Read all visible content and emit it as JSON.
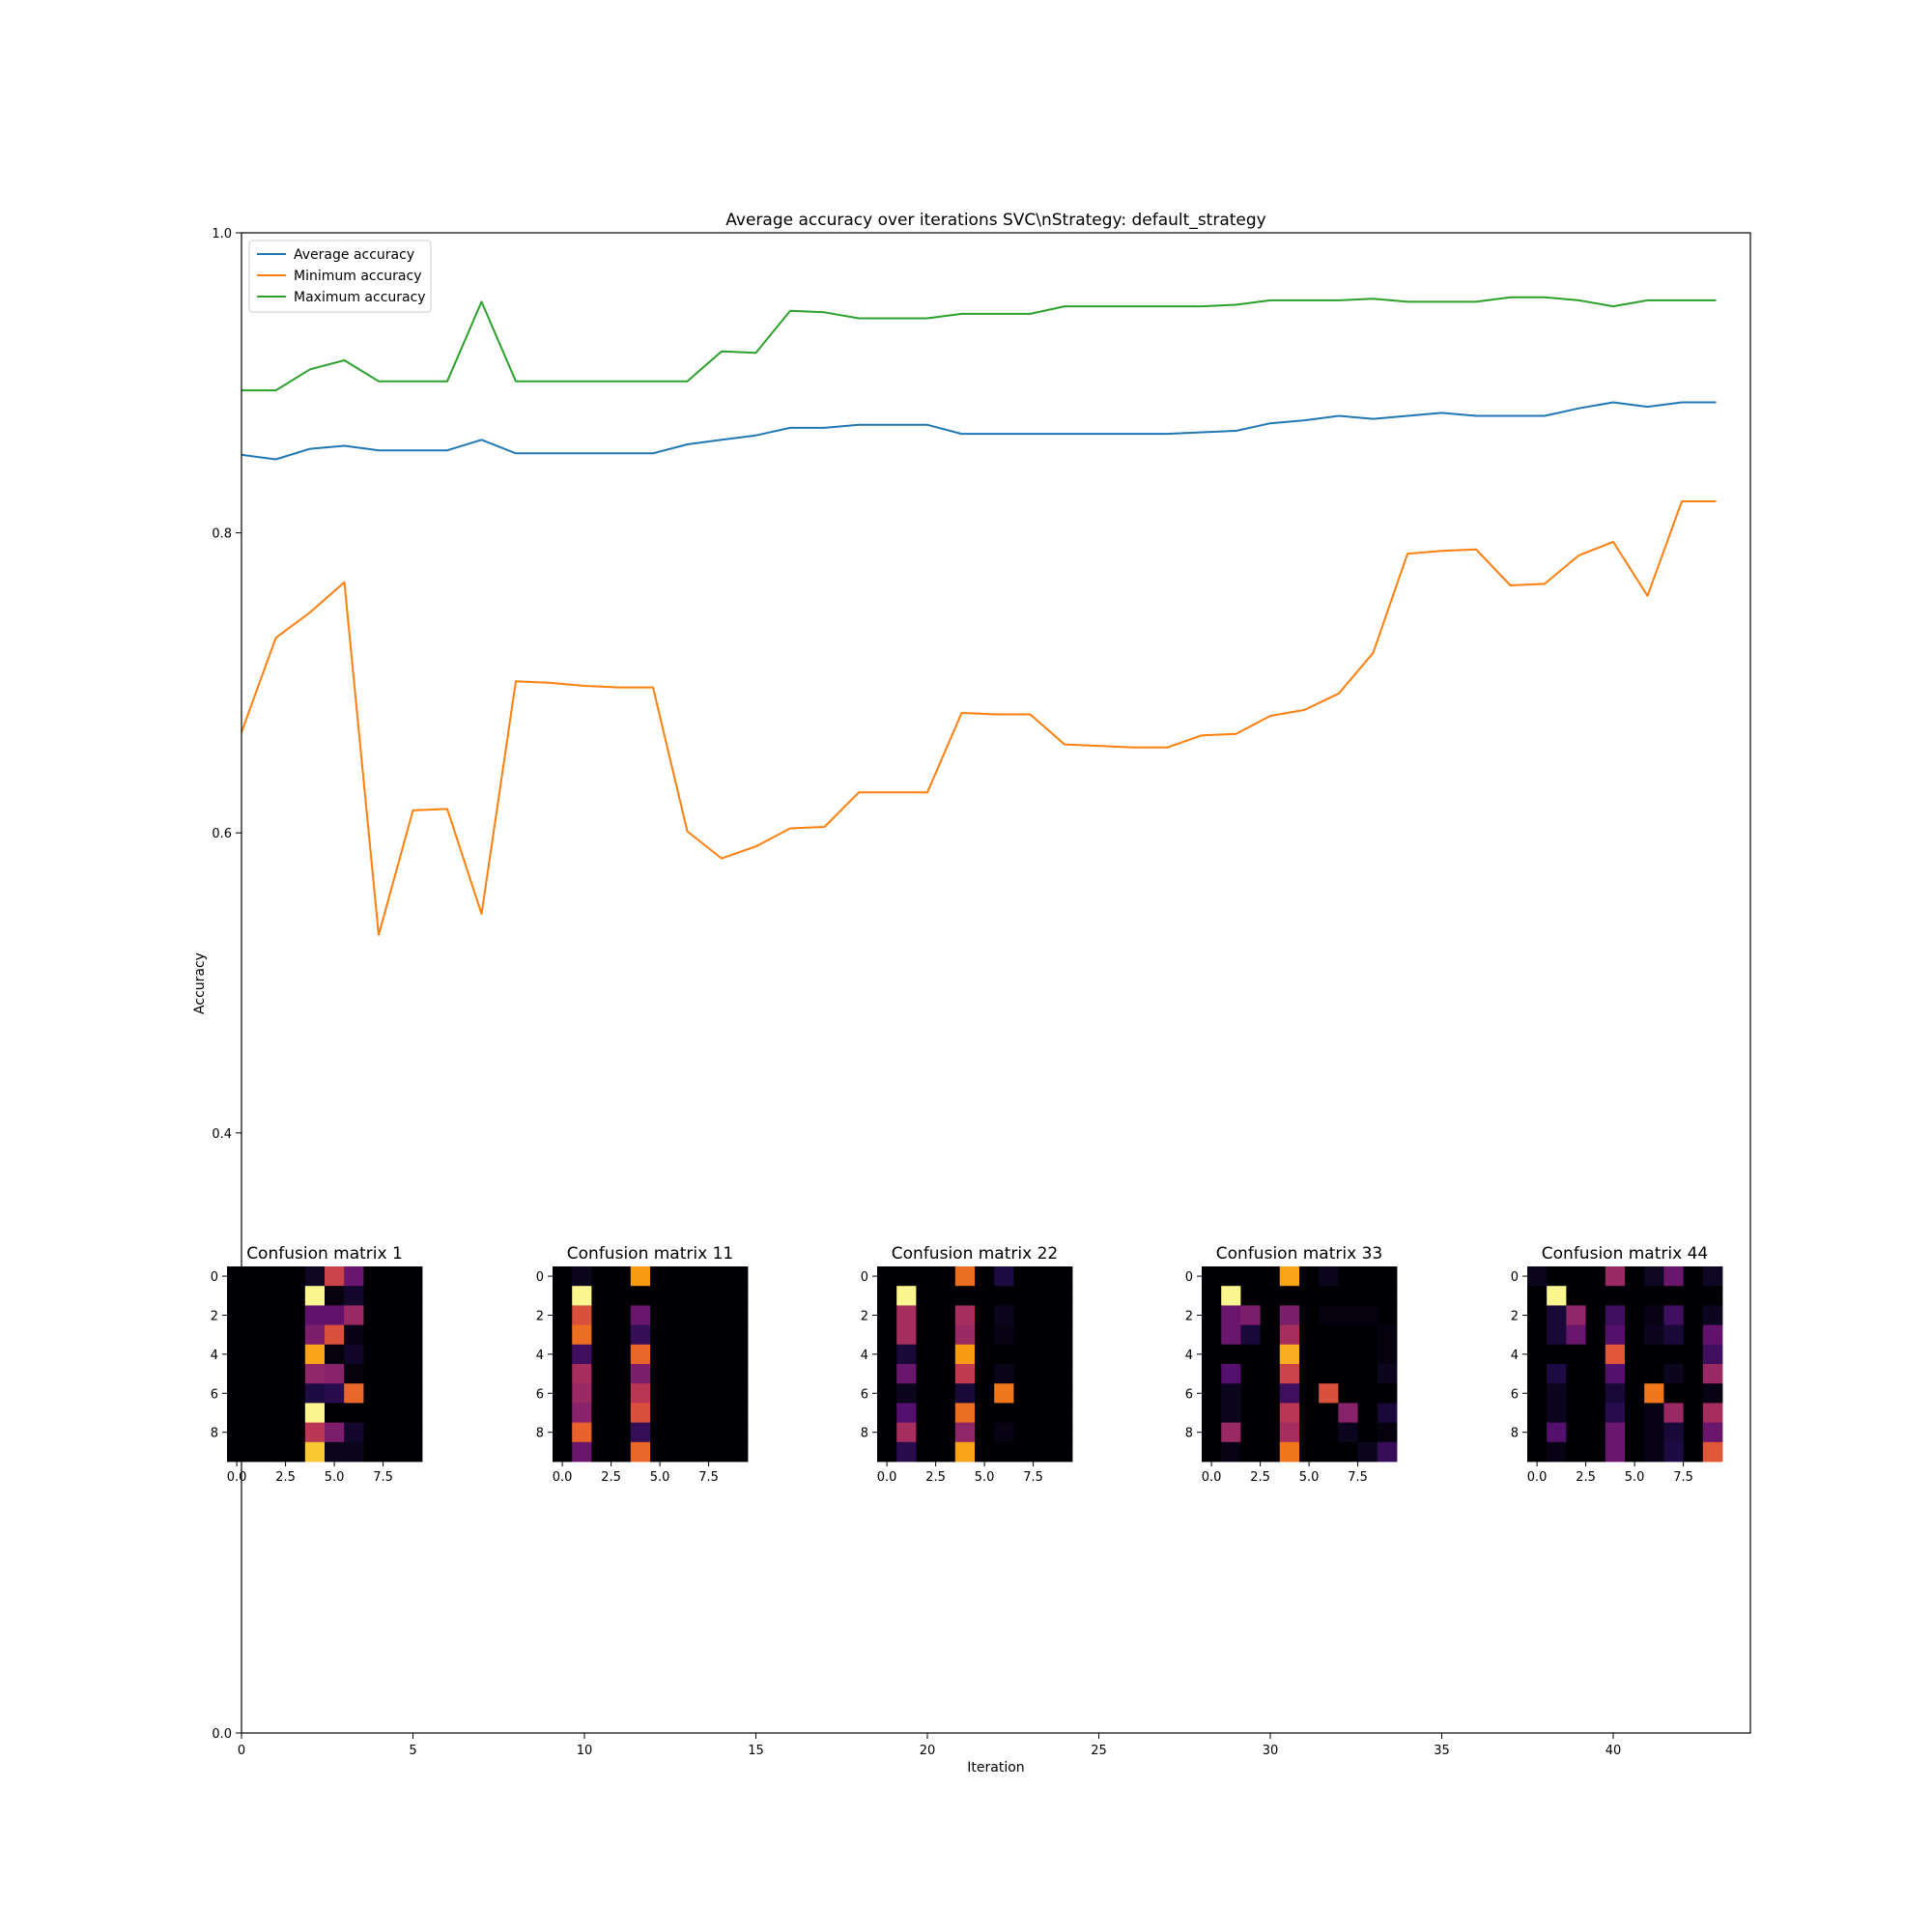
{
  "chart_data": [
    {
      "type": "line",
      "title": "Average accuracy over iterations SVC\\nStrategy: default_strategy",
      "xlabel": "Iteration",
      "ylabel": "Accuracy",
      "xlim": [
        0,
        44
      ],
      "ylim": [
        0.0,
        1.0
      ],
      "xticks": [
        0,
        5,
        10,
        15,
        20,
        25,
        30,
        35,
        40
      ],
      "xtick_labels": [
        "0",
        "5",
        "10",
        "15",
        "20",
        "25",
        "30",
        "35",
        "40"
      ],
      "yticks": [
        0.0,
        0.4,
        0.6,
        0.8,
        1.0
      ],
      "ytick_labels": [
        "0.0",
        "0.4",
        "0.6",
        "0.8",
        "1.0"
      ],
      "grid": false,
      "legend_position": "top-left",
      "x": [
        0,
        1,
        2,
        3,
        4,
        5,
        6,
        7,
        8,
        9,
        10,
        11,
        12,
        13,
        14,
        15,
        16,
        17,
        18,
        19,
        20,
        21,
        22,
        23,
        24,
        25,
        26,
        27,
        28,
        29,
        30,
        31,
        32,
        33,
        34,
        35,
        36,
        37,
        38,
        39,
        40,
        41,
        42,
        43
      ],
      "series": [
        {
          "name": "Average accuracy",
          "color": "#1f77b4",
          "values": [
            0.852,
            0.849,
            0.856,
            0.858,
            0.855,
            0.855,
            0.855,
            0.862,
            0.853,
            0.853,
            0.853,
            0.853,
            0.853,
            0.859,
            0.862,
            0.865,
            0.87,
            0.87,
            0.872,
            0.872,
            0.872,
            0.866,
            0.866,
            0.866,
            0.866,
            0.866,
            0.866,
            0.866,
            0.867,
            0.868,
            0.873,
            0.875,
            0.878,
            0.876,
            0.878,
            0.88,
            0.878,
            0.878,
            0.878,
            0.883,
            0.887,
            0.884,
            0.887,
            0.887
          ]
        },
        {
          "name": "Minimum accuracy",
          "color": "#ff7f0e",
          "values": [
            0.667,
            0.73,
            0.747,
            0.767,
            0.532,
            0.615,
            0.616,
            0.546,
            0.701,
            0.7,
            0.698,
            0.697,
            0.697,
            0.601,
            0.583,
            0.591,
            0.603,
            0.604,
            0.627,
            0.627,
            0.627,
            0.68,
            0.679,
            0.679,
            0.659,
            0.658,
            0.657,
            0.657,
            0.665,
            0.666,
            0.678,
            0.682,
            0.693,
            0.72,
            0.786,
            0.788,
            0.789,
            0.765,
            0.766,
            0.785,
            0.794,
            0.758,
            0.821,
            0.821
          ]
        },
        {
          "name": "Maximum accuracy",
          "color": "#2ca02c",
          "values": [
            0.895,
            0.895,
            0.909,
            0.915,
            0.901,
            0.901,
            0.901,
            0.954,
            0.901,
            0.901,
            0.901,
            0.901,
            0.901,
            0.901,
            0.921,
            0.92,
            0.948,
            0.947,
            0.943,
            0.943,
            0.943,
            0.946,
            0.946,
            0.946,
            0.951,
            0.951,
            0.951,
            0.951,
            0.951,
            0.952,
            0.955,
            0.955,
            0.955,
            0.956,
            0.954,
            0.954,
            0.954,
            0.957,
            0.957,
            0.955,
            0.951,
            0.955,
            0.955,
            0.955
          ]
        }
      ]
    },
    {
      "type": "heatmap",
      "title": "Confusion matrix 1",
      "colormap": "inferno",
      "xticks": [
        0.0,
        2.5,
        5.0,
        7.5
      ],
      "xtick_labels": [
        "0.0",
        "2.5",
        "5.0",
        "7.5"
      ],
      "yticks": [
        0,
        2,
        4,
        6,
        8
      ],
      "ytick_labels": [
        "0",
        "2",
        "4",
        "6",
        "8"
      ],
      "values": [
        [
          0,
          0,
          0,
          0,
          0.06,
          0.55,
          0.3,
          0,
          0,
          0
        ],
        [
          0,
          0,
          0,
          0,
          0.98,
          0.02,
          0.08,
          0,
          0,
          0
        ],
        [
          0,
          0,
          0,
          0,
          0.28,
          0.28,
          0.42,
          0,
          0,
          0
        ],
        [
          0,
          0,
          0,
          0,
          0.35,
          0.6,
          0.03,
          0,
          0,
          0
        ],
        [
          0,
          0,
          0,
          0,
          0.8,
          0.02,
          0.07,
          0,
          0,
          0
        ],
        [
          0,
          0,
          0,
          0,
          0.4,
          0.38,
          0.02,
          0,
          0,
          0
        ],
        [
          0,
          0,
          0,
          0,
          0.12,
          0.15,
          0.66,
          0,
          0,
          0
        ],
        [
          0,
          0,
          0,
          0,
          0.98,
          0,
          0,
          0,
          0,
          0
        ],
        [
          0,
          0,
          0,
          0,
          0.5,
          0.35,
          0.08,
          0,
          0,
          0
        ],
        [
          0,
          0,
          0,
          0,
          0.88,
          0.05,
          0.05,
          0,
          0,
          0
        ]
      ]
    },
    {
      "type": "heatmap",
      "title": "Confusion matrix 11",
      "colormap": "inferno",
      "xticks": [
        0.0,
        2.5,
        5.0,
        7.5
      ],
      "xtick_labels": [
        "0.0",
        "2.5",
        "5.0",
        "7.5"
      ],
      "yticks": [
        0,
        2,
        4,
        6,
        8
      ],
      "ytick_labels": [
        "0",
        "2",
        "4",
        "6",
        "8"
      ],
      "values": [
        [
          0,
          0.05,
          0,
          0,
          0.78,
          0,
          0,
          0,
          0,
          0
        ],
        [
          0,
          0.98,
          0,
          0,
          0,
          0,
          0,
          0,
          0,
          0
        ],
        [
          0,
          0.6,
          0,
          0,
          0.3,
          0,
          0,
          0,
          0,
          0
        ],
        [
          0,
          0.68,
          0,
          0,
          0.18,
          0,
          0,
          0,
          0,
          0
        ],
        [
          0,
          0.2,
          0,
          0,
          0.66,
          0,
          0,
          0,
          0,
          0
        ],
        [
          0,
          0.45,
          0,
          0,
          0.35,
          0,
          0,
          0,
          0,
          0
        ],
        [
          0,
          0.42,
          0,
          0,
          0.5,
          0,
          0,
          0,
          0,
          0
        ],
        [
          0,
          0.38,
          0,
          0,
          0.6,
          0,
          0,
          0,
          0,
          0
        ],
        [
          0,
          0.65,
          0,
          0,
          0.18,
          0,
          0,
          0,
          0,
          0
        ],
        [
          0,
          0.3,
          0,
          0,
          0.66,
          0,
          0,
          0,
          0,
          0
        ]
      ]
    },
    {
      "type": "heatmap",
      "title": "Confusion matrix 22",
      "colormap": "inferno",
      "xticks": [
        0.0,
        2.5,
        5.0,
        7.5
      ],
      "xtick_labels": [
        "0.0",
        "2.5",
        "5.0",
        "7.5"
      ],
      "yticks": [
        0,
        2,
        4,
        6,
        8
      ],
      "ytick_labels": [
        "0",
        "2",
        "4",
        "6",
        "8"
      ],
      "values": [
        [
          0,
          0,
          0,
          0,
          0.68,
          0,
          0.12,
          0,
          0,
          0
        ],
        [
          0,
          0.98,
          0,
          0,
          0,
          0,
          0,
          0,
          0,
          0
        ],
        [
          0,
          0.45,
          0,
          0,
          0.45,
          0,
          0.05,
          0,
          0,
          0
        ],
        [
          0,
          0.45,
          0,
          0,
          0.42,
          0,
          0.03,
          0,
          0,
          0
        ],
        [
          0,
          0.1,
          0,
          0,
          0.78,
          0,
          0,
          0,
          0,
          0
        ],
        [
          0,
          0.3,
          0,
          0,
          0.52,
          0,
          0.04,
          0,
          0,
          0
        ],
        [
          0,
          0.05,
          0,
          0,
          0.1,
          0,
          0.7,
          0,
          0,
          0
        ],
        [
          0,
          0.25,
          0,
          0,
          0.68,
          0,
          0,
          0,
          0,
          0
        ],
        [
          0,
          0.45,
          0,
          0,
          0.4,
          0,
          0.03,
          0,
          0,
          0
        ],
        [
          0,
          0.15,
          0,
          0,
          0.8,
          0,
          0,
          0,
          0,
          0
        ]
      ]
    },
    {
      "type": "heatmap",
      "title": "Confusion matrix 33",
      "colormap": "inferno",
      "xticks": [
        0.0,
        2.5,
        5.0,
        7.5
      ],
      "xtick_labels": [
        "0.0",
        "2.5",
        "5.0",
        "7.5"
      ],
      "yticks": [
        0,
        2,
        4,
        6,
        8
      ],
      "ytick_labels": [
        "0",
        "2",
        "4",
        "6",
        "8"
      ],
      "values": [
        [
          0,
          0,
          0,
          0,
          0.8,
          0,
          0.05,
          0,
          0,
          0
        ],
        [
          0,
          0.98,
          0,
          0,
          0,
          0,
          0,
          0,
          0,
          0
        ],
        [
          0,
          0.3,
          0.35,
          0,
          0.35,
          0,
          0.02,
          0.02,
          0.02,
          0
        ],
        [
          0,
          0.3,
          0.1,
          0,
          0.45,
          0,
          0,
          0,
          0,
          0.02
        ],
        [
          0,
          0,
          0,
          0,
          0.82,
          0,
          0,
          0,
          0,
          0.02
        ],
        [
          0,
          0.25,
          0,
          0,
          0.55,
          0,
          0,
          0,
          0,
          0.05
        ],
        [
          0,
          0.05,
          0,
          0,
          0.2,
          0,
          0.6,
          0,
          0,
          0
        ],
        [
          0,
          0.05,
          0,
          0,
          0.5,
          0,
          0,
          0.38,
          0,
          0.1
        ],
        [
          0,
          0.42,
          0,
          0,
          0.45,
          0,
          0,
          0.05,
          0,
          0.02
        ],
        [
          0,
          0.03,
          0,
          0,
          0.7,
          0,
          0,
          0,
          0.05,
          0.18
        ]
      ]
    },
    {
      "type": "heatmap",
      "title": "Confusion matrix 44",
      "colormap": "inferno",
      "xticks": [
        0.0,
        2.5,
        5.0,
        7.5
      ],
      "xtick_labels": [
        "0.0",
        "2.5",
        "5.0",
        "7.5"
      ],
      "yticks": [
        0,
        2,
        4,
        6,
        8
      ],
      "ytick_labels": [
        "0",
        "2",
        "4",
        "6",
        "8"
      ],
      "values": [
        [
          0.05,
          0,
          0,
          0,
          0.42,
          0,
          0.06,
          0.3,
          0,
          0.06
        ],
        [
          0,
          0.98,
          0,
          0,
          0,
          0,
          0,
          0,
          0,
          0
        ],
        [
          0,
          0.1,
          0.4,
          0,
          0.2,
          0,
          0.03,
          0.2,
          0,
          0.05
        ],
        [
          0,
          0.1,
          0.3,
          0,
          0.25,
          0,
          0.05,
          0.1,
          0,
          0.28
        ],
        [
          0,
          0,
          0,
          0,
          0.62,
          0,
          0,
          0,
          0,
          0.2
        ],
        [
          0,
          0.12,
          0,
          0,
          0.25,
          0,
          0,
          0.05,
          0,
          0.42
        ],
        [
          0,
          0.05,
          0,
          0,
          0.1,
          0,
          0.7,
          0,
          0,
          0.03
        ],
        [
          0,
          0.05,
          0,
          0,
          0.15,
          0,
          0.03,
          0.42,
          0,
          0.45
        ],
        [
          0,
          0.25,
          0,
          0,
          0.3,
          0,
          0.03,
          0.1,
          0,
          0.3
        ],
        [
          0,
          0.03,
          0,
          0,
          0.3,
          0,
          0.03,
          0.12,
          0,
          0.62
        ]
      ]
    }
  ]
}
